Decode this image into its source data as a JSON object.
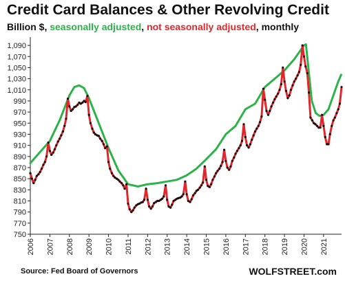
{
  "chart_data": {
    "type": "line",
    "title": "Credit Card Balances & Other Revolving Credit",
    "subtitle_parts": [
      {
        "text": "Billion $, ",
        "color": "#111111"
      },
      {
        "text": "seasonally adjusted",
        "color": "#2bb34a"
      },
      {
        "text": ", ",
        "color": "#111111"
      },
      {
        "text": "not seasonally adjusted",
        "color": "#e3262b"
      },
      {
        "text": ", monthly",
        "color": "#111111"
      }
    ],
    "ylim": [
      750,
      1100
    ],
    "yticks": [
      750,
      770,
      790,
      810,
      830,
      850,
      870,
      890,
      910,
      930,
      950,
      970,
      990,
      1010,
      1030,
      1050,
      1070,
      1090
    ],
    "ytick_labels": [
      "750",
      "770",
      "790",
      "810",
      "830",
      "850",
      "870",
      "890",
      "910",
      "930",
      "950",
      "970",
      "990",
      "1,010",
      "1,030",
      "1,050",
      "1,070",
      "1,090"
    ],
    "xlim": [
      2006.0,
      2021.92
    ],
    "xticks": [
      2006,
      2007,
      2008,
      2009,
      2010,
      2011,
      2012,
      2013,
      2014,
      2015,
      2016,
      2017,
      2018,
      2019,
      2020,
      2021
    ],
    "xtick_labels": [
      "2006",
      "2007",
      "2008",
      "2009",
      "2010",
      "2011",
      "2012",
      "2013",
      "2014",
      "2015",
      "2016",
      "2017",
      "2018",
      "2019",
      "2020",
      "2021"
    ],
    "grid": false,
    "series": [
      {
        "color": "#2bb34a",
        "points": [
          [
            2006.0,
            878
          ],
          [
            2006.5,
            898
          ],
          [
            2007.0,
            918
          ],
          [
            2007.5,
            955
          ],
          [
            2008.0,
            1000
          ],
          [
            2008.25,
            1015
          ],
          [
            2008.5,
            1018
          ],
          [
            2008.75,
            1013
          ],
          [
            2009.0,
            995
          ],
          [
            2009.5,
            950
          ],
          [
            2010.0,
            905
          ],
          [
            2010.5,
            865
          ],
          [
            2011.0,
            840
          ],
          [
            2011.5,
            836
          ],
          [
            2012.0,
            840
          ],
          [
            2012.5,
            842
          ],
          [
            2013.0,
            845
          ],
          [
            2013.5,
            848
          ],
          [
            2014.0,
            856
          ],
          [
            2014.5,
            868
          ],
          [
            2015.0,
            885
          ],
          [
            2015.5,
            903
          ],
          [
            2016.0,
            930
          ],
          [
            2016.5,
            945
          ],
          [
            2017.0,
            975
          ],
          [
            2017.5,
            985
          ],
          [
            2018.0,
            1015
          ],
          [
            2018.5,
            1030
          ],
          [
            2019.0,
            1045
          ],
          [
            2019.5,
            1065
          ],
          [
            2020.0,
            1090
          ],
          [
            2020.1,
            1092
          ],
          [
            2020.25,
            1040
          ],
          [
            2020.4,
            990
          ],
          [
            2020.6,
            968
          ],
          [
            2020.8,
            963
          ],
          [
            2021.0,
            965
          ],
          [
            2021.25,
            975
          ],
          [
            2021.5,
            1000
          ],
          [
            2021.75,
            1025
          ],
          [
            2021.9,
            1037
          ]
        ]
      },
      {
        "color": "#e3262b",
        "marker_color": "#111111",
        "points": [
          [
            2006.0,
            860
          ],
          [
            2006.08,
            850
          ],
          [
            2006.17,
            842
          ],
          [
            2006.25,
            848
          ],
          [
            2006.33,
            855
          ],
          [
            2006.42,
            858
          ],
          [
            2006.5,
            862
          ],
          [
            2006.58,
            868
          ],
          [
            2006.67,
            875
          ],
          [
            2006.75,
            880
          ],
          [
            2006.83,
            890
          ],
          [
            2006.92,
            915
          ],
          [
            2007.0,
            900
          ],
          [
            2007.08,
            893
          ],
          [
            2007.17,
            897
          ],
          [
            2007.25,
            903
          ],
          [
            2007.33,
            910
          ],
          [
            2007.42,
            917
          ],
          [
            2007.5,
            922
          ],
          [
            2007.58,
            928
          ],
          [
            2007.67,
            935
          ],
          [
            2007.75,
            945
          ],
          [
            2007.83,
            958
          ],
          [
            2007.92,
            994
          ],
          [
            2008.0,
            980
          ],
          [
            2008.08,
            972
          ],
          [
            2008.17,
            975
          ],
          [
            2008.25,
            979
          ],
          [
            2008.33,
            980
          ],
          [
            2008.42,
            983
          ],
          [
            2008.5,
            987
          ],
          [
            2008.58,
            985
          ],
          [
            2008.67,
            987
          ],
          [
            2008.75,
            990
          ],
          [
            2008.83,
            988
          ],
          [
            2008.92,
            999
          ],
          [
            2009.0,
            965
          ],
          [
            2009.08,
            950
          ],
          [
            2009.17,
            940
          ],
          [
            2009.25,
            933
          ],
          [
            2009.33,
            930
          ],
          [
            2009.42,
            928
          ],
          [
            2009.5,
            927
          ],
          [
            2009.58,
            922
          ],
          [
            2009.67,
            918
          ],
          [
            2009.75,
            912
          ],
          [
            2009.83,
            905
          ],
          [
            2009.92,
            908
          ],
          [
            2010.0,
            880
          ],
          [
            2010.08,
            868
          ],
          [
            2010.17,
            860
          ],
          [
            2010.25,
            855
          ],
          [
            2010.33,
            852
          ],
          [
            2010.42,
            850
          ],
          [
            2010.5,
            848
          ],
          [
            2010.58,
            845
          ],
          [
            2010.67,
            842
          ],
          [
            2010.75,
            838
          ],
          [
            2010.83,
            832
          ],
          [
            2010.92,
            840
          ],
          [
            2011.0,
            805
          ],
          [
            2011.08,
            795
          ],
          [
            2011.17,
            790
          ],
          [
            2011.25,
            793
          ],
          [
            2011.33,
            798
          ],
          [
            2011.42,
            802
          ],
          [
            2011.5,
            804
          ],
          [
            2011.58,
            805
          ],
          [
            2011.67,
            807
          ],
          [
            2011.75,
            808
          ],
          [
            2011.83,
            812
          ],
          [
            2011.92,
            832
          ],
          [
            2012.0,
            812
          ],
          [
            2012.08,
            800
          ],
          [
            2012.17,
            796
          ],
          [
            2012.25,
            800
          ],
          [
            2012.33,
            806
          ],
          [
            2012.42,
            808
          ],
          [
            2012.5,
            810
          ],
          [
            2012.58,
            810
          ],
          [
            2012.67,
            812
          ],
          [
            2012.75,
            814
          ],
          [
            2012.83,
            818
          ],
          [
            2012.92,
            838
          ],
          [
            2013.0,
            812
          ],
          [
            2013.08,
            800
          ],
          [
            2013.17,
            798
          ],
          [
            2013.25,
            803
          ],
          [
            2013.33,
            810
          ],
          [
            2013.42,
            812
          ],
          [
            2013.5,
            814
          ],
          [
            2013.58,
            815
          ],
          [
            2013.67,
            816
          ],
          [
            2013.75,
            818
          ],
          [
            2013.83,
            822
          ],
          [
            2013.92,
            845
          ],
          [
            2014.0,
            822
          ],
          [
            2014.08,
            810
          ],
          [
            2014.17,
            808
          ],
          [
            2014.25,
            813
          ],
          [
            2014.33,
            820
          ],
          [
            2014.42,
            824
          ],
          [
            2014.5,
            828
          ],
          [
            2014.58,
            830
          ],
          [
            2014.67,
            834
          ],
          [
            2014.75,
            838
          ],
          [
            2014.83,
            843
          ],
          [
            2014.92,
            872
          ],
          [
            2015.0,
            848
          ],
          [
            2015.08,
            837
          ],
          [
            2015.17,
            835
          ],
          [
            2015.25,
            840
          ],
          [
            2015.33,
            848
          ],
          [
            2015.42,
            854
          ],
          [
            2015.5,
            860
          ],
          [
            2015.58,
            864
          ],
          [
            2015.67,
            868
          ],
          [
            2015.75,
            873
          ],
          [
            2015.83,
            880
          ],
          [
            2015.92,
            902
          ],
          [
            2016.0,
            882
          ],
          [
            2016.08,
            870
          ],
          [
            2016.17,
            866
          ],
          [
            2016.25,
            872
          ],
          [
            2016.33,
            882
          ],
          [
            2016.42,
            888
          ],
          [
            2016.5,
            895
          ],
          [
            2016.58,
            900
          ],
          [
            2016.67,
            905
          ],
          [
            2016.75,
            910
          ],
          [
            2016.83,
            918
          ],
          [
            2016.92,
            948
          ],
          [
            2017.0,
            925
          ],
          [
            2017.08,
            910
          ],
          [
            2017.17,
            906
          ],
          [
            2017.25,
            912
          ],
          [
            2017.33,
            920
          ],
          [
            2017.42,
            928
          ],
          [
            2017.5,
            935
          ],
          [
            2017.58,
            940
          ],
          [
            2017.67,
            945
          ],
          [
            2017.75,
            952
          ],
          [
            2017.83,
            962
          ],
          [
            2017.92,
            1012
          ],
          [
            2018.0,
            992
          ],
          [
            2018.08,
            972
          ],
          [
            2018.17,
            965
          ],
          [
            2018.25,
            972
          ],
          [
            2018.33,
            980
          ],
          [
            2018.42,
            987
          ],
          [
            2018.5,
            993
          ],
          [
            2018.58,
            998
          ],
          [
            2018.67,
            1003
          ],
          [
            2018.75,
            1010
          ],
          [
            2018.83,
            1020
          ],
          [
            2018.92,
            1050
          ],
          [
            2019.0,
            1025
          ],
          [
            2019.08,
            1008
          ],
          [
            2019.17,
            995
          ],
          [
            2019.25,
            1000
          ],
          [
            2019.33,
            1010
          ],
          [
            2019.42,
            1018
          ],
          [
            2019.5,
            1025
          ],
          [
            2019.58,
            1030
          ],
          [
            2019.67,
            1036
          ],
          [
            2019.75,
            1042
          ],
          [
            2019.83,
            1055
          ],
          [
            2019.92,
            1090
          ],
          [
            2020.0,
            1070
          ],
          [
            2020.08,
            1052
          ],
          [
            2020.17,
            1040
          ],
          [
            2020.25,
            1005
          ],
          [
            2020.33,
            960
          ],
          [
            2020.42,
            955
          ],
          [
            2020.5,
            950
          ],
          [
            2020.58,
            948
          ],
          [
            2020.67,
            945
          ],
          [
            2020.75,
            942
          ],
          [
            2020.83,
            942
          ],
          [
            2020.92,
            965
          ],
          [
            2021.0,
            945
          ],
          [
            2021.08,
            925
          ],
          [
            2021.17,
            912
          ],
          [
            2021.25,
            912
          ],
          [
            2021.33,
            930
          ],
          [
            2021.42,
            945
          ],
          [
            2021.5,
            955
          ],
          [
            2021.58,
            960
          ],
          [
            2021.67,
            968
          ],
          [
            2021.75,
            975
          ],
          [
            2021.83,
            985
          ],
          [
            2021.92,
            1015
          ]
        ]
      }
    ]
  },
  "source": "Source: Fed Board of Governors",
  "brand": "WOLFSTREET.com"
}
